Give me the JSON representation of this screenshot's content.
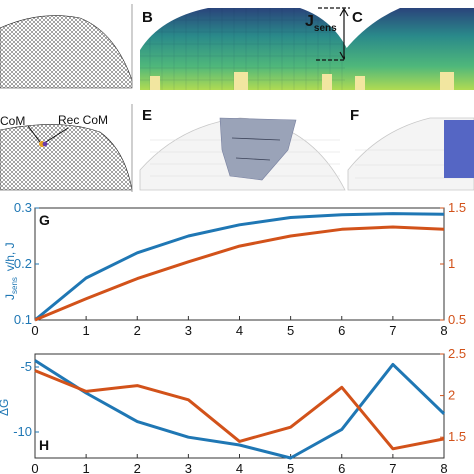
{
  "panels": {
    "B": "B",
    "C": "C",
    "E": "E",
    "F": "F",
    "G": "G",
    "H": "H"
  },
  "annotations": {
    "jsens": "J",
    "jsens_sub": "sens",
    "com": "CoM",
    "rec_com": "Rec CoM"
  },
  "colors": {
    "blue": "#1f77b4",
    "orange": "#d2521a",
    "terrain": "#2e2e2e",
    "region_blue": "#5566c4",
    "region_gray": "#9aa3b8"
  },
  "chart_data": [
    {
      "type": "line",
      "panel": "G",
      "x": [
        0,
        1,
        2,
        3,
        4,
        5,
        6,
        7,
        8
      ],
      "xlim": [
        0,
        8
      ],
      "xticks": [
        "0",
        "1",
        "2",
        "3",
        "4",
        "5",
        "6",
        "7",
        "8"
      ],
      "ylabel_left": "J",
      "ylabel_left_sub": "sens",
      "ylabel_left_tail": "v/h, J",
      "ylim_left": [
        0.1,
        0.3
      ],
      "yticks_left": [
        "0.1",
        "0.2",
        "0.3"
      ],
      "ylim_right": [
        0.5,
        1.5
      ],
      "yticks_right": [
        "0.5",
        "1",
        "1.5"
      ],
      "grid": false,
      "series": [
        {
          "axis": "left",
          "color": "#1f77b4",
          "values": [
            0.1,
            0.175,
            0.22,
            0.25,
            0.27,
            0.283,
            0.288,
            0.29,
            0.289
          ]
        },
        {
          "axis": "right",
          "color": "#d2521a",
          "values": [
            0.5,
            0.69,
            0.87,
            1.02,
            1.16,
            1.25,
            1.31,
            1.33,
            1.31
          ]
        }
      ]
    },
    {
      "type": "line",
      "panel": "H",
      "x": [
        0,
        1,
        2,
        3,
        4,
        5,
        6,
        7,
        8
      ],
      "xlim": [
        0,
        8
      ],
      "xticks": [
        "0",
        "1",
        "2",
        "3",
        "4",
        "5",
        "6",
        "7",
        "8"
      ],
      "ylabel_left": "ΔG",
      "ylim_left": [
        -12,
        -4
      ],
      "yticks_left": [
        "-5",
        "-10"
      ],
      "ylim_right": [
        1.25,
        2.5
      ],
      "yticks_right": [
        "1.5",
        "2",
        "2.5"
      ],
      "grid": false,
      "series": [
        {
          "axis": "left",
          "color": "#1f77b4",
          "values": [
            -4.5,
            -7.0,
            -9.2,
            -10.4,
            -11.0,
            -12.0,
            -9.8,
            -4.8,
            -8.6
          ]
        },
        {
          "axis": "right",
          "color": "#d2521a",
          "values": [
            2.3,
            2.05,
            2.12,
            1.95,
            1.45,
            1.62,
            2.1,
            1.36,
            1.48
          ]
        }
      ]
    }
  ]
}
